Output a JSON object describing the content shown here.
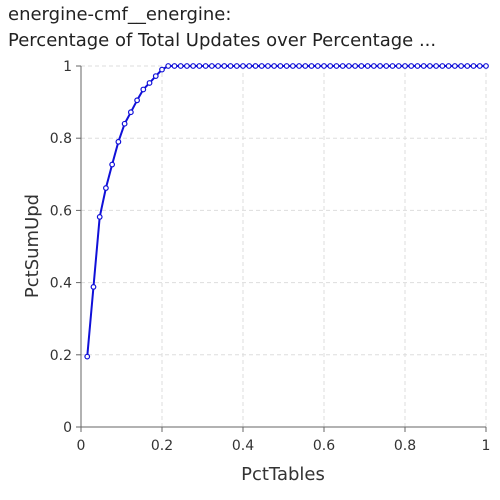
{
  "chart_data": {
    "type": "line",
    "title_line1": "energine-cmf__energine:",
    "title_line2": "Percentage of Total Updates over Percentage ...",
    "xlabel": "PctTables",
    "ylabel": "PctSumUpd",
    "xlim": [
      0,
      1
    ],
    "ylim": [
      0,
      1
    ],
    "grid": true,
    "x_ticks": [
      {
        "v": 0,
        "label": "0"
      },
      {
        "v": 0.2,
        "label": "0.2"
      },
      {
        "v": 0.4,
        "label": "0.4"
      },
      {
        "v": 0.6,
        "label": "0.6"
      },
      {
        "v": 0.8,
        "label": "0.8"
      },
      {
        "v": 1,
        "label": "1"
      }
    ],
    "y_ticks": [
      {
        "v": 0,
        "label": "0"
      },
      {
        "v": 0.2,
        "label": "0.2"
      },
      {
        "v": 0.4,
        "label": "0.4"
      },
      {
        "v": 0.6,
        "label": "0.6"
      },
      {
        "v": 0.8,
        "label": "0.8"
      },
      {
        "v": 1,
        "label": "1"
      }
    ],
    "series": [
      {
        "color": "#1010d8",
        "x": [
          0.0154,
          0.0308,
          0.0462,
          0.0615,
          0.0769,
          0.0923,
          0.1077,
          0.1231,
          0.1385,
          0.1538,
          0.1692,
          0.1846,
          0.2,
          0.2154,
          0.2308,
          0.2462,
          0.2615,
          0.2769,
          0.2923,
          0.3077,
          0.3231,
          0.3385,
          0.3538,
          0.3692,
          0.3846,
          0.4,
          0.4154,
          0.4308,
          0.4462,
          0.4615,
          0.4769,
          0.4923,
          0.5077,
          0.5231,
          0.5385,
          0.5538,
          0.5692,
          0.5846,
          0.6,
          0.6154,
          0.6308,
          0.6462,
          0.6615,
          0.6769,
          0.6923,
          0.7077,
          0.7231,
          0.7385,
          0.7538,
          0.7692,
          0.7846,
          0.8,
          0.8154,
          0.8308,
          0.8462,
          0.8615,
          0.8769,
          0.8923,
          0.9077,
          0.9231,
          0.9385,
          0.9538,
          0.9692,
          0.9846,
          1.0
        ],
        "y": [
          0.195,
          0.388,
          0.582,
          0.662,
          0.727,
          0.79,
          0.84,
          0.872,
          0.905,
          0.935,
          0.953,
          0.972,
          0.99,
          1,
          1,
          1,
          1,
          1,
          1,
          1,
          1,
          1,
          1,
          1,
          1,
          1,
          1,
          1,
          1,
          1,
          1,
          1,
          1,
          1,
          1,
          1,
          1,
          1,
          1,
          1,
          1,
          1,
          1,
          1,
          1,
          1,
          1,
          1,
          1,
          1,
          1,
          1,
          1,
          1,
          1,
          1,
          1,
          1,
          1,
          1,
          1,
          1,
          1,
          1,
          1
        ]
      }
    ]
  }
}
